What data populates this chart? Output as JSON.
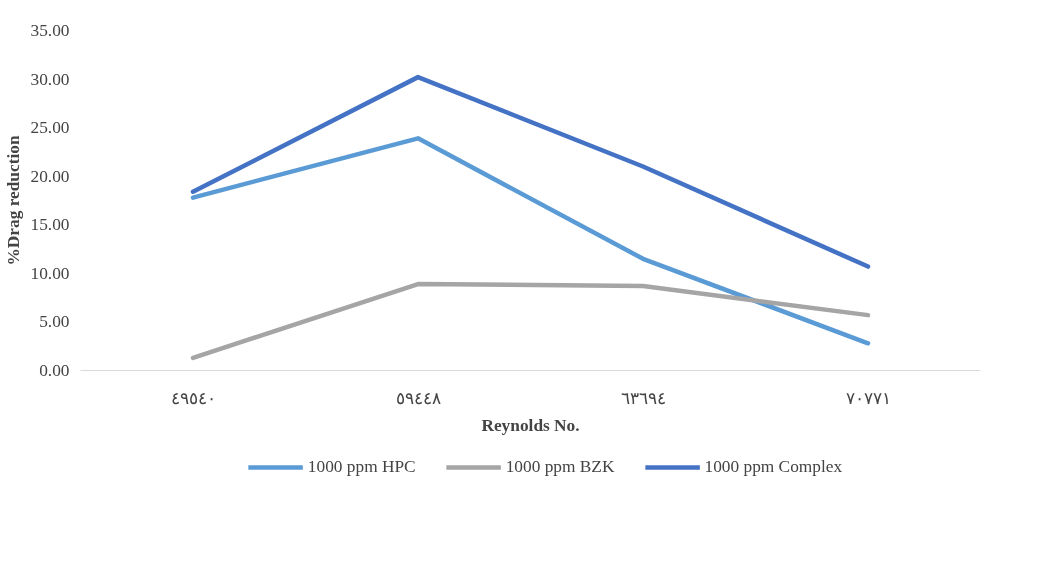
{
  "chart_data": {
    "type": "line",
    "xlabel": "Reynolds No.",
    "ylabel": "%Drag reduction",
    "categories": [
      "٤٩٥٤٠",
      "٥٩٤٤٨",
      "٦٣٦٩٤",
      "٧٠٧٧١"
    ],
    "series": [
      {
        "name": "1000 ppm HPC",
        "color": "#5b9bd5",
        "values": [
          17.8,
          23.9,
          11.5,
          2.8
        ]
      },
      {
        "name": "1000 ppm BZK",
        "color": "#a5a5a5",
        "values": [
          1.3,
          8.9,
          8.7,
          5.7
        ]
      },
      {
        "name": "1000 ppm Complex",
        "color": "#4472c4",
        "values": [
          18.4,
          30.2,
          21.0,
          10.7
        ]
      }
    ],
    "ylim": [
      0,
      35
    ],
    "yticks": [
      {
        "value": 0,
        "label": "0.00"
      },
      {
        "value": 5,
        "label": "5.00"
      },
      {
        "value": 10,
        "label": "10.00"
      },
      {
        "value": 15,
        "label": "15.00"
      },
      {
        "value": 20,
        "label": "20.00"
      },
      {
        "value": 25,
        "label": "25.00"
      },
      {
        "value": 30,
        "label": "30.00"
      },
      {
        "value": 35,
        "label": "35.00"
      }
    ],
    "grid": false,
    "legend": "bottom",
    "marker": "none",
    "line_style": "solid"
  }
}
